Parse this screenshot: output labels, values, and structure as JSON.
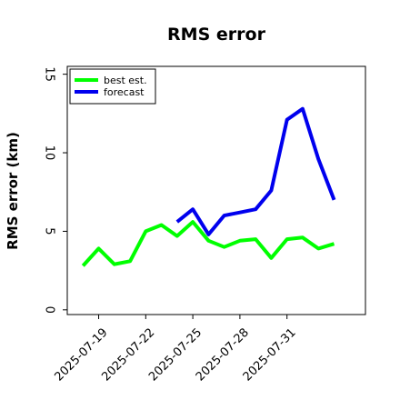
{
  "chart_data": {
    "type": "line",
    "title": "RMS error",
    "xlabel": "",
    "ylabel": "RMS error (km)",
    "x": [
      "2025-07-18",
      "2025-07-19",
      "2025-07-20",
      "2025-07-21",
      "2025-07-22",
      "2025-07-23",
      "2025-07-24",
      "2025-07-25",
      "2025-07-26",
      "2025-07-27",
      "2025-07-28",
      "2025-07-29",
      "2025-07-30",
      "2025-07-31",
      "2025-08-01",
      "2025-08-02",
      "2025-08-03"
    ],
    "xticks": [
      "2025-07-19",
      "2025-07-22",
      "2025-07-25",
      "2025-07-28",
      "2025-07-31"
    ],
    "yticks": [
      0,
      5,
      10,
      15
    ],
    "ylim": [
      -0.3,
      15.5
    ],
    "xlim": [
      "2025-07-17",
      "2025-08-05"
    ],
    "grid": false,
    "legend_position": "top-left",
    "series": [
      {
        "name": "best est.",
        "color": "#00ff00",
        "values": [
          2.8,
          3.9,
          2.9,
          3.1,
          5.0,
          5.4,
          4.7,
          5.6,
          4.4,
          4.0,
          4.4,
          4.5,
          3.3,
          4.5,
          4.6,
          3.9,
          4.2
        ]
      },
      {
        "name": "forecast",
        "color": "#0000ee",
        "values": [
          null,
          null,
          null,
          null,
          null,
          null,
          5.6,
          6.4,
          4.8,
          6.0,
          6.2,
          6.4,
          7.6,
          12.1,
          12.8,
          9.6,
          7.0
        ]
      }
    ]
  }
}
